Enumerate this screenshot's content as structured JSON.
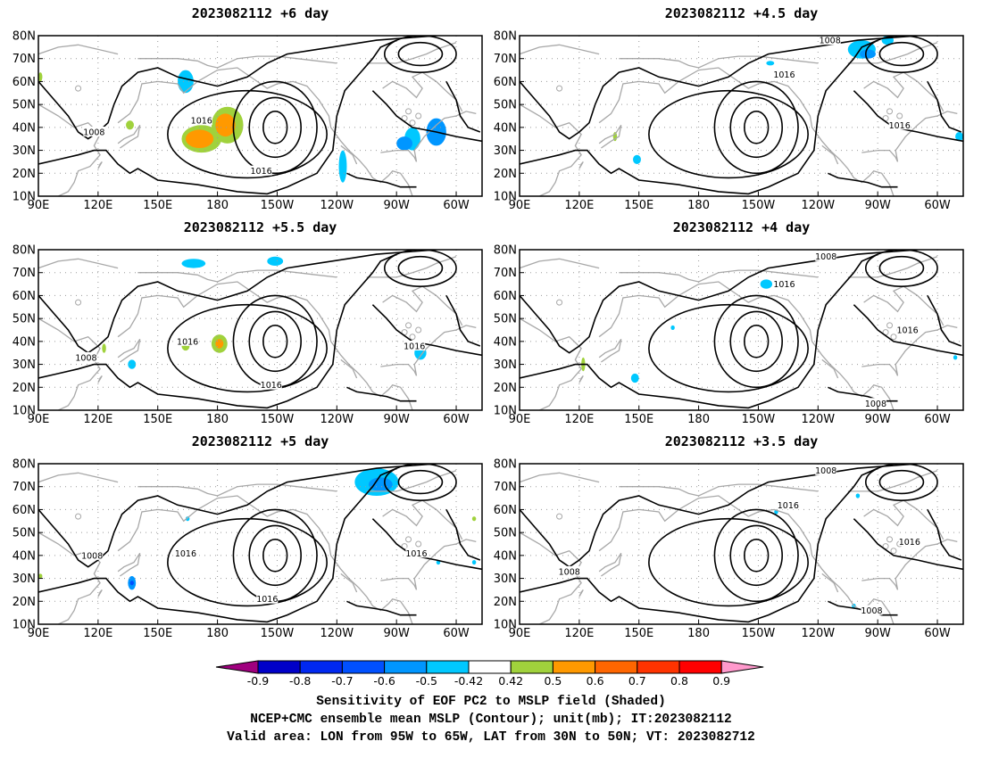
{
  "figure": {
    "title_lines": [
      "Sensitivity of EOF PC2 to MSLP field (Shaded)",
      "NCEP+CMC ensemble mean MSLP (Contour); unit(mb); IT:2023082112",
      "Valid area: LON from 95W to 65W, LAT from 30N to 50N; VT: 2023082712"
    ]
  },
  "chart_data": {
    "type": "heatmap",
    "axes": {
      "lon_ticks": [
        "90E",
        "120E",
        "150E",
        "180",
        "150W",
        "120W",
        "90W",
        "60W"
      ],
      "lat_ticks": [
        "10N",
        "20N",
        "30N",
        "40N",
        "50N",
        "60N",
        "70N",
        "80N"
      ],
      "lon_range_deg_east": [
        90,
        313
      ],
      "lat_range": [
        10,
        80
      ],
      "grid": "dotted"
    },
    "colorbar": {
      "levels": [
        "-0.9",
        "-0.8",
        "-0.7",
        "-0.6",
        "-0.5",
        "-0.42",
        "0.42",
        "0.5",
        "0.6",
        "0.7",
        "0.8",
        "0.9"
      ],
      "colors": [
        "#a0007f",
        "#0000c8",
        "#0028f0",
        "#0050ff",
        "#0096ff",
        "#00c8ff",
        "#ffffff",
        "#a0d23c",
        "#ff9900",
        "#ff6600",
        "#ff3300",
        "#ff0000",
        "#ff99cc"
      ],
      "position": "bottom"
    },
    "panels": [
      {
        "title": "2023082112  +6 day",
        "contour_labels": [
          {
            "text": "1008",
            "lon": 118,
            "lat": 38
          },
          {
            "text": "1016",
            "lon": 172,
            "lat": 43
          },
          {
            "text": "1016",
            "lon": 202,
            "lat": 21
          }
        ],
        "blobs": [
          {
            "lon": 172,
            "lat": 35,
            "rx": 10,
            "ry": 6,
            "color": "#a0d23c"
          },
          {
            "lon": 185,
            "lat": 41,
            "rx": 8,
            "ry": 8,
            "color": "#a0d23c"
          },
          {
            "lon": 171,
            "lat": 35,
            "rx": 7,
            "ry": 4,
            "color": "#ff9900"
          },
          {
            "lon": 184,
            "lat": 41,
            "rx": 5,
            "ry": 5,
            "color": "#ff9900"
          },
          {
            "lon": 164,
            "lat": 60,
            "rx": 4,
            "ry": 5,
            "color": "#00c8ff"
          },
          {
            "lon": 243,
            "lat": 23,
            "rx": 2,
            "ry": 7,
            "color": "#00c8ff"
          },
          {
            "lon": 278,
            "lat": 35,
            "rx": 4,
            "ry": 5,
            "color": "#00c8ff"
          },
          {
            "lon": 274,
            "lat": 33,
            "rx": 4,
            "ry": 3,
            "color": "#0096ff"
          },
          {
            "lon": 290,
            "lat": 38,
            "rx": 5,
            "ry": 6,
            "color": "#0096ff"
          },
          {
            "lon": 136,
            "lat": 41,
            "rx": 2,
            "ry": 2,
            "color": "#a0d23c"
          },
          {
            "lon": 91,
            "lat": 62,
            "rx": 1,
            "ry": 2,
            "color": "#a0d23c"
          }
        ]
      },
      {
        "title": "2023082112  +4.5 day",
        "contour_labels": [
          {
            "text": "1008",
            "lon": 246,
            "lat": 78
          },
          {
            "text": "1016",
            "lon": 223,
            "lat": 63
          },
          {
            "text": "1016",
            "lon": 281,
            "lat": 41
          }
        ],
        "blobs": [
          {
            "lon": 262,
            "lat": 74,
            "rx": 7,
            "ry": 4,
            "color": "#00c8ff"
          },
          {
            "lon": 265,
            "lat": 72,
            "rx": 4,
            "ry": 2,
            "color": "#0096ff"
          },
          {
            "lon": 275,
            "lat": 78,
            "rx": 3,
            "ry": 2,
            "color": "#00c8ff"
          },
          {
            "lon": 149,
            "lat": 26,
            "rx": 2,
            "ry": 2,
            "color": "#00c8ff"
          },
          {
            "lon": 311,
            "lat": 36,
            "rx": 2,
            "ry": 2,
            "color": "#00c8ff"
          },
          {
            "lon": 216,
            "lat": 68,
            "rx": 2,
            "ry": 1,
            "color": "#00c8ff"
          },
          {
            "lon": 138,
            "lat": 36,
            "rx": 1,
            "ry": 2,
            "color": "#a0d23c"
          }
        ]
      },
      {
        "title": "2023082112  +5.5 day",
        "contour_labels": [
          {
            "text": "1008",
            "lon": 114,
            "lat": 33
          },
          {
            "text": "1016",
            "lon": 165,
            "lat": 40
          },
          {
            "text": "1016",
            "lon": 207,
            "lat": 21
          },
          {
            "text": "1016",
            "lon": 279,
            "lat": 38
          }
        ],
        "blobs": [
          {
            "lon": 168,
            "lat": 74,
            "rx": 6,
            "ry": 2,
            "color": "#00c8ff"
          },
          {
            "lon": 209,
            "lat": 75,
            "rx": 4,
            "ry": 2,
            "color": "#00c8ff"
          },
          {
            "lon": 181,
            "lat": 39,
            "rx": 4,
            "ry": 4,
            "color": "#a0d23c"
          },
          {
            "lon": 181,
            "lat": 39,
            "rx": 2,
            "ry": 2,
            "color": "#ff9900"
          },
          {
            "lon": 164,
            "lat": 38,
            "rx": 2,
            "ry": 2,
            "color": "#a0d23c"
          },
          {
            "lon": 137,
            "lat": 30,
            "rx": 2,
            "ry": 2,
            "color": "#00c8ff"
          },
          {
            "lon": 282,
            "lat": 35,
            "rx": 3,
            "ry": 3,
            "color": "#00c8ff"
          },
          {
            "lon": 123,
            "lat": 37,
            "rx": 1,
            "ry": 2,
            "color": "#a0d23c"
          }
        ]
      },
      {
        "title": "2023082112  +4 day",
        "contour_labels": [
          {
            "text": "1008",
            "lon": 244,
            "lat": 77
          },
          {
            "text": "1016",
            "lon": 223,
            "lat": 65
          },
          {
            "text": "1016",
            "lon": 285,
            "lat": 45
          },
          {
            "text": "1008",
            "lon": 269,
            "lat": 13
          }
        ],
        "blobs": [
          {
            "lon": 214,
            "lat": 65,
            "rx": 3,
            "ry": 2,
            "color": "#00c8ff"
          },
          {
            "lon": 148,
            "lat": 24,
            "rx": 2,
            "ry": 2,
            "color": "#00c8ff"
          },
          {
            "lon": 122,
            "lat": 30,
            "rx": 1,
            "ry": 3,
            "color": "#a0d23c"
          },
          {
            "lon": 167,
            "lat": 46,
            "rx": 1,
            "ry": 1,
            "color": "#00c8ff"
          },
          {
            "lon": 309,
            "lat": 33,
            "rx": 1,
            "ry": 1,
            "color": "#00c8ff"
          }
        ]
      },
      {
        "title": "2023082112  +5 day",
        "contour_labels": [
          {
            "text": "1008",
            "lon": 117,
            "lat": 40
          },
          {
            "text": "1016",
            "lon": 164,
            "lat": 41
          },
          {
            "text": "1016",
            "lon": 205,
            "lat": 21
          },
          {
            "text": "1016",
            "lon": 280,
            "lat": 41
          }
        ],
        "blobs": [
          {
            "lon": 260,
            "lat": 72,
            "rx": 11,
            "ry": 6,
            "color": "#00c8ff"
          },
          {
            "lon": 262,
            "lat": 71,
            "rx": 6,
            "ry": 3,
            "color": "#0096ff"
          },
          {
            "lon": 137,
            "lat": 28,
            "rx": 2,
            "ry": 3,
            "color": "#0096ff"
          },
          {
            "lon": 137,
            "lat": 28,
            "rx": 1,
            "ry": 1,
            "color": "#0050ff"
          },
          {
            "lon": 291,
            "lat": 37,
            "rx": 1,
            "ry": 1,
            "color": "#00c8ff"
          },
          {
            "lon": 309,
            "lat": 37,
            "rx": 1,
            "ry": 1,
            "color": "#00c8ff"
          },
          {
            "lon": 309,
            "lat": 56,
            "rx": 1,
            "ry": 1,
            "color": "#a0d23c"
          },
          {
            "lon": 91,
            "lat": 31,
            "rx": 1,
            "ry": 1,
            "color": "#a0d23c"
          },
          {
            "lon": 165,
            "lat": 56,
            "rx": 1,
            "ry": 1,
            "color": "#00c8ff"
          }
        ]
      },
      {
        "title": "2023082112  +3.5 day",
        "contour_labels": [
          {
            "text": "1008",
            "lon": 244,
            "lat": 77
          },
          {
            "text": "1016",
            "lon": 225,
            "lat": 62
          },
          {
            "text": "1016",
            "lon": 286,
            "lat": 46
          },
          {
            "text": "1008",
            "lon": 115,
            "lat": 33
          },
          {
            "text": "1008",
            "lon": 267,
            "lat": 16
          }
        ],
        "blobs": [
          {
            "lon": 219,
            "lat": 59,
            "rx": 1,
            "ry": 1,
            "color": "#00c8ff"
          },
          {
            "lon": 258,
            "lat": 18,
            "rx": 1,
            "ry": 1,
            "color": "#00c8ff"
          },
          {
            "lon": 260,
            "lat": 66,
            "rx": 1,
            "ry": 1,
            "color": "#00c8ff"
          }
        ]
      }
    ]
  }
}
